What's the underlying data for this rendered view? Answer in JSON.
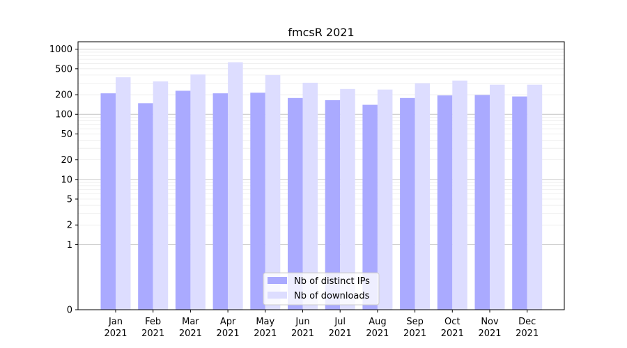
{
  "chart_data": {
    "type": "bar",
    "title": "fmcsR 2021",
    "xlabel": "",
    "ylabel": "",
    "y_scale": "symlog",
    "ylim": [
      0,
      1300
    ],
    "y_ticks": [
      0,
      1,
      2,
      5,
      10,
      20,
      50,
      100,
      200,
      500,
      1000
    ],
    "grid": true,
    "legend_position": "bottom-center",
    "categories": [
      [
        "Jan",
        "2021"
      ],
      [
        "Feb",
        "2021"
      ],
      [
        "Mar",
        "2021"
      ],
      [
        "Apr",
        "2021"
      ],
      [
        "May",
        "2021"
      ],
      [
        "Jun",
        "2021"
      ],
      [
        "Jul",
        "2021"
      ],
      [
        "Aug",
        "2021"
      ],
      [
        "Sep",
        "2021"
      ],
      [
        "Oct",
        "2021"
      ],
      [
        "Nov",
        "2021"
      ],
      [
        "Dec",
        "2021"
      ]
    ],
    "series": [
      {
        "name": "Nb of distinct IPs",
        "color": "#aaaaff",
        "values": [
          210,
          148,
          230,
          210,
          215,
          178,
          165,
          140,
          178,
          195,
          198,
          188
        ]
      },
      {
        "name": "Nb of downloads",
        "color": "#ddddff",
        "values": [
          370,
          320,
          410,
          630,
          400,
          305,
          245,
          240,
          300,
          330,
          285,
          285
        ]
      }
    ]
  }
}
